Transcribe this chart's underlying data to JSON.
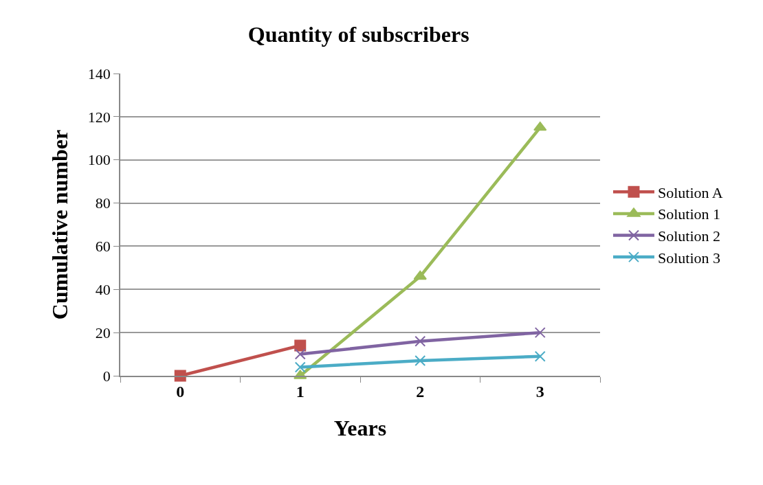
{
  "chart_data": {
    "type": "line",
    "title": "Quantity of subscribers",
    "xlabel": "Years",
    "ylabel": "Cumulative number",
    "categories": [
      "0",
      "1",
      "2",
      "3"
    ],
    "series": [
      {
        "name": "Solution A",
        "color": "#c0504d",
        "marker": "square",
        "values": [
          0,
          14,
          null,
          null
        ]
      },
      {
        "name": "Solution 1",
        "color": "#9bbb59",
        "marker": "triangle",
        "values": [
          null,
          0,
          46,
          115
        ]
      },
      {
        "name": "Solution 2",
        "color": "#8064a2",
        "marker": "cross",
        "values": [
          null,
          10,
          16,
          20
        ]
      },
      {
        "name": "Solution 3",
        "color": "#4bacc6",
        "marker": "cross",
        "values": [
          null,
          4,
          7,
          9
        ]
      }
    ],
    "ylim": [
      0,
      140
    ],
    "yticks": [
      0,
      20,
      40,
      60,
      80,
      100,
      120,
      140
    ],
    "grid": "y",
    "legend": "right",
    "line_style": "solid"
  }
}
